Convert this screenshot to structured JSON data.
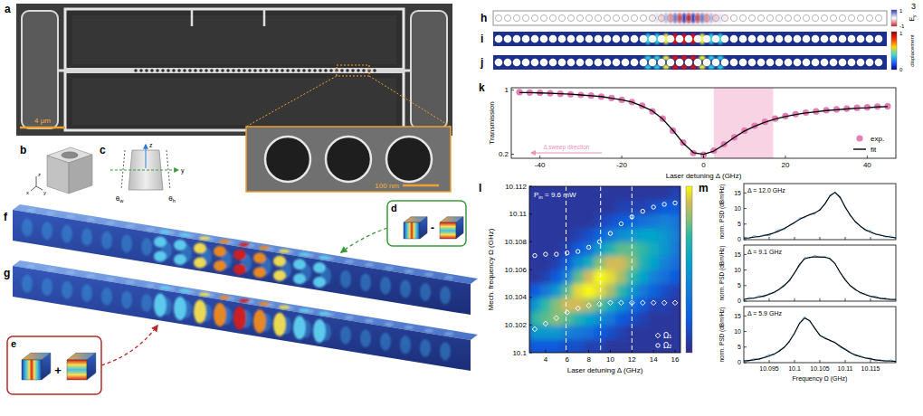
{
  "page_number": "3",
  "sem": {
    "letter": "a",
    "scale_bar": "4 μm",
    "inset_scale_bar": "100 nm"
  },
  "unit_cell": {
    "letter": "b",
    "axes": [
      "x",
      "y",
      "z"
    ]
  },
  "cross_section": {
    "letter": "c",
    "axes": [
      "z",
      "y"
    ],
    "angles": [
      {
        "text": "θ",
        "sub": "w"
      },
      {
        "text": "θ",
        "sub": "h"
      }
    ]
  },
  "mode_d": {
    "letter": "d",
    "operator": "-"
  },
  "mode_e": {
    "letter": "e",
    "operator": "+"
  },
  "mode_profiles": {
    "letters": [
      "f",
      "g"
    ]
  },
  "field_profile": {
    "letter": "h",
    "colorbar": {
      "label": {
        "text": "E",
        "sub": "y"
      },
      "range": [
        -1,
        1
      ],
      "ticks": [
        -1,
        1
      ]
    }
  },
  "displacement_profiles": {
    "letters": [
      "i",
      "j"
    ],
    "colorbar": {
      "label": "displacement",
      "range": [
        0,
        1
      ],
      "ticks": [
        0,
        1
      ]
    }
  },
  "chart_data": [
    {
      "type": "line",
      "letter": "k",
      "x_label": "Laser detuning Δ (GHz)",
      "y_label": "Transmission",
      "x": [
        -45,
        -42.5,
        -40,
        -37.5,
        -35,
        -32.5,
        -30,
        -27.5,
        -25,
        -22.5,
        -20,
        -17.5,
        -15,
        -12.5,
        -10,
        -7.5,
        -5,
        -2.5,
        0,
        2.5,
        5,
        7.5,
        10,
        12.5,
        15,
        17.5,
        20,
        22.5,
        25,
        27.5,
        30,
        32.5,
        35,
        37.5,
        40,
        42.5,
        45
      ],
      "xlim": [
        -47,
        47
      ],
      "ylim": [
        0.15,
        1.03
      ],
      "xticks": [
        -40,
        -20,
        0,
        20,
        40
      ],
      "yticks": [
        0.2,
        1
      ],
      "legend": "lower right",
      "highlight_range": [
        2.5,
        17
      ],
      "annotation": {
        "text": "Δ sweep direction",
        "color": "#e98fba"
      },
      "series": [
        {
          "name": "exp.",
          "type": "scatter",
          "marker": "circle",
          "color": "#e37fb6",
          "values": [
            0.975,
            0.97,
            0.968,
            0.962,
            0.955,
            0.948,
            0.94,
            0.932,
            0.918,
            0.902,
            0.878,
            0.852,
            0.805,
            0.735,
            0.645,
            0.495,
            0.345,
            0.215,
            0.195,
            0.245,
            0.325,
            0.41,
            0.495,
            0.555,
            0.605,
            0.645,
            0.675,
            0.7,
            0.72,
            0.735,
            0.75,
            0.76,
            0.77,
            0.78,
            0.785,
            0.795,
            0.8
          ]
        },
        {
          "name": "fit",
          "type": "line",
          "color": "#000000",
          "values": [
            0.97,
            0.97,
            0.965,
            0.96,
            0.955,
            0.95,
            0.94,
            0.93,
            0.92,
            0.9,
            0.88,
            0.85,
            0.8,
            0.74,
            0.64,
            0.5,
            0.34,
            0.22,
            0.2,
            0.24,
            0.32,
            0.41,
            0.49,
            0.55,
            0.6,
            0.64,
            0.67,
            0.695,
            0.715,
            0.73,
            0.745,
            0.755,
            0.765,
            0.775,
            0.78,
            0.79,
            0.795
          ]
        }
      ]
    },
    {
      "type": "heatmap",
      "letter": "l",
      "x_label": "Laser detuning Δ (GHz)",
      "y_label": "Mech. frequency Ω (GHz)",
      "annotation": {
        "text": "P",
        "sub": "in",
        "rest": " = 9.6 mW"
      },
      "xlim": [
        2.5,
        16.5
      ],
      "ylim": [
        10.1,
        10.112
      ],
      "xticks": [
        4,
        6,
        8,
        10,
        12,
        14,
        16
      ],
      "yticks": [
        10.1,
        10.102,
        10.104,
        10.106,
        10.108,
        10.11,
        10.112
      ],
      "cells": {
        "x": [
          3,
          4,
          5,
          6,
          7,
          8,
          9,
          10,
          11,
          12,
          13,
          14,
          15,
          16
        ],
        "y": [
          10.1005,
          10.1015,
          10.1025,
          10.1035,
          10.1045,
          10.1055,
          10.1065,
          10.1075,
          10.1085,
          10.1095,
          10.1105,
          10.1115
        ],
        "values": [
          [
            0.2,
            0.2,
            0.2,
            0.15,
            0.15,
            0.1,
            0.1,
            0.05,
            0.05,
            0.05,
            0.05,
            0.05,
            0.05,
            0.05
          ],
          [
            0.5,
            0.5,
            0.5,
            0.4,
            0.35,
            0.3,
            0.2,
            0.15,
            0.1,
            0.05,
            0.05,
            0.05,
            0.05,
            0.05
          ],
          [
            0.7,
            0.75,
            0.8,
            0.75,
            0.65,
            0.55,
            0.45,
            0.35,
            0.2,
            0.15,
            0.1,
            0.05,
            0.05,
            0.05
          ],
          [
            0.5,
            0.7,
            0.8,
            0.9,
            0.9,
            0.85,
            0.75,
            0.6,
            0.45,
            0.3,
            0.2,
            0.1,
            0.1,
            0.05
          ],
          [
            0.2,
            0.35,
            0.5,
            0.75,
            0.95,
            1,
            0.95,
            0.85,
            0.7,
            0.5,
            0.35,
            0.25,
            0.15,
            0.1
          ],
          [
            0.05,
            0.1,
            0.2,
            0.4,
            0.75,
            0.9,
            1,
            0.95,
            0.85,
            0.7,
            0.55,
            0.4,
            0.3,
            0.2
          ],
          [
            0.05,
            0.05,
            0.1,
            0.2,
            0.45,
            0.6,
            0.8,
            0.9,
            0.9,
            0.8,
            0.65,
            0.55,
            0.4,
            0.3
          ],
          [
            0.05,
            0.05,
            0.05,
            0.1,
            0.2,
            0.3,
            0.5,
            0.65,
            0.75,
            0.75,
            0.7,
            0.6,
            0.5,
            0.38
          ],
          [
            0.05,
            0.05,
            0.05,
            0.05,
            0.1,
            0.15,
            0.25,
            0.35,
            0.45,
            0.5,
            0.55,
            0.55,
            0.5,
            0.4
          ],
          [
            0.05,
            0.05,
            0.05,
            0.05,
            0.05,
            0.05,
            0.1,
            0.15,
            0.2,
            0.25,
            0.3,
            0.35,
            0.4,
            0.35
          ],
          [
            0.05,
            0.05,
            0.05,
            0.05,
            0.05,
            0.05,
            0.05,
            0.05,
            0.1,
            0.1,
            0.1,
            0.15,
            0.2,
            0.2
          ],
          [
            0.05,
            0.05,
            0.05,
            0.05,
            0.05,
            0.05,
            0.05,
            0.05,
            0.05,
            0.05,
            0.05,
            0.05,
            0.05,
            0.1
          ]
        ]
      },
      "colorbar": {
        "range": [
          0,
          1
        ]
      },
      "dashed_lines": [
        5.9,
        9.1,
        12.0
      ],
      "legend": "lower right",
      "x": [
        3,
        4,
        5,
        6,
        7,
        8,
        9,
        10,
        11,
        12,
        13,
        14,
        15,
        16
      ],
      "series": [
        {
          "name": "Ω₁",
          "type": "scatter",
          "marker": "diamond",
          "color": "#ffffff",
          "values": [
            10.1017,
            10.1021,
            10.1025,
            10.1029,
            10.1032,
            10.1034,
            10.1035,
            10.1036,
            10.1036,
            10.1036,
            10.1036,
            10.1036,
            10.1036,
            10.1036
          ]
        },
        {
          "name": "Ω₂",
          "type": "scatter",
          "marker": "circle",
          "color": "#ffffff",
          "values": [
            10.107,
            10.1071,
            10.1071,
            10.1072,
            10.1073,
            10.1076,
            10.108,
            10.1086,
            10.1093,
            10.1098,
            10.1102,
            10.1105,
            10.1107,
            10.1108
          ]
        }
      ]
    },
    {
      "type": "line",
      "letter": "m",
      "label": "Δ = 12.0 GHz",
      "y_label": "norm. PSD (dBm/Hz)",
      "tick_labels": "y",
      "xlim": [
        10.09,
        10.12
      ],
      "ylim": [
        0,
        18
      ],
      "xticks": [
        10.095,
        10.1,
        10.105,
        10.11,
        10.115
      ],
      "yticks": [
        0,
        5,
        10,
        15
      ],
      "x": [
        10.09,
        10.091,
        10.092,
        10.093,
        10.094,
        10.095,
        10.096,
        10.097,
        10.098,
        10.099,
        10.1,
        10.101,
        10.102,
        10.103,
        10.104,
        10.105,
        10.106,
        10.107,
        10.108,
        10.109,
        10.11,
        10.111,
        10.112,
        10.113,
        10.114,
        10.115,
        10.116,
        10.117,
        10.118,
        10.119,
        10.12
      ],
      "series": [
        {
          "color": "#4f9fdf",
          "values": [
            0.9,
            0.3,
            1.3,
            0.8,
            1.6,
            1.2,
            2.4,
            3.2,
            3.2,
            4.8,
            5.3,
            7.0,
            7.0,
            8.2,
            8.2,
            9.8,
            11.2,
            14.4,
            15.0,
            14.0,
            10.1,
            8.1,
            5.5,
            4.5,
            2.8,
            2.9,
            1.6,
            1.7,
            0.8,
            1.2,
            0.4
          ]
        },
        {
          "color": "#000000",
          "values": [
            0.5,
            0.6,
            0.8,
            1.0,
            1.3,
            1.7,
            2.2,
            2.8,
            3.6,
            4.5,
            5.5,
            6.5,
            7.3,
            8.0,
            8.6,
            9.5,
            11.5,
            14.0,
            15.2,
            13.5,
            10.5,
            7.8,
            5.8,
            4.3,
            3.2,
            2.4,
            1.8,
            1.4,
            1.1,
            0.8,
            0.6
          ]
        }
      ]
    },
    {
      "type": "line",
      "label": "Δ = 9.1 GHz",
      "y_label": "norm. PSD (dBm/Hz)",
      "tick_labels": "y",
      "xlim": [
        10.09,
        10.12
      ],
      "ylim": [
        0,
        18
      ],
      "xticks": [
        10.095,
        10.1,
        10.105,
        10.11,
        10.115
      ],
      "yticks": [
        0,
        5,
        10,
        15
      ],
      "x": [
        10.09,
        10.091,
        10.092,
        10.093,
        10.094,
        10.095,
        10.096,
        10.097,
        10.098,
        10.099,
        10.1,
        10.101,
        10.102,
        10.103,
        10.104,
        10.105,
        10.106,
        10.107,
        10.108,
        10.109,
        10.11,
        10.111,
        10.112,
        10.113,
        10.114,
        10.115,
        10.116,
        10.117,
        10.118,
        10.119,
        10.12
      ],
      "series": [
        {
          "color": "#4f9fdf",
          "values": [
            0.3,
            1.2,
            0.8,
            1.8,
            1.3,
            2.5,
            2.6,
            4.0,
            5.4,
            6.3,
            9.3,
            11.3,
            14.0,
            13.8,
            14.7,
            14.0,
            14.4,
            13.3,
            12.2,
            9.0,
            7.2,
            4.8,
            4.0,
            2.4,
            2.3,
            1.3,
            1.6,
            0.7,
            1.0,
            0.3,
            0.7
          ]
        },
        {
          "color": "#000000",
          "values": [
            0.6,
            0.8,
            1.0,
            1.3,
            1.7,
            2.2,
            2.9,
            3.8,
            5.0,
            6.7,
            9.0,
            11.8,
            13.6,
            14.1,
            14.2,
            14.2,
            14.1,
            13.7,
            12.0,
            9.3,
            6.8,
            5.0,
            3.7,
            2.8,
            2.1,
            1.6,
            1.2,
            0.9,
            0.7,
            0.6,
            0.5
          ]
        }
      ]
    },
    {
      "type": "line",
      "label": "Δ = 5.9 GHz",
      "x_label": "Frequency Ω (GHz)",
      "y_label": "norm. PSD (dBm/Hz)",
      "xlim": [
        10.09,
        10.12
      ],
      "ylim": [
        0,
        18
      ],
      "xticks": [
        10.095,
        10.1,
        10.105,
        10.11,
        10.115
      ],
      "yticks": [
        0,
        5,
        10,
        15
      ],
      "x": [
        10.09,
        10.091,
        10.092,
        10.093,
        10.094,
        10.095,
        10.096,
        10.097,
        10.098,
        10.099,
        10.1,
        10.101,
        10.102,
        10.103,
        10.104,
        10.105,
        10.106,
        10.107,
        10.108,
        10.109,
        10.11,
        10.111,
        10.112,
        10.113,
        10.114,
        10.115,
        10.116,
        10.117,
        10.118,
        10.119,
        10.12
      ],
      "series": [
        {
          "color": "#4f9fdf",
          "values": [
            0.8,
            0.5,
            1.3,
            0.9,
            1.8,
            2.6,
            2.4,
            4.0,
            4.8,
            7.2,
            9.2,
            12.8,
            14.8,
            13.1,
            11.3,
            8.6,
            8.2,
            6.9,
            6.6,
            4.9,
            4.5,
            3.4,
            2.2,
            2.3,
            1.3,
            1.5,
            0.5,
            0.9,
            0.3,
            0.9,
            0.2
          ]
        },
        {
          "color": "#000000",
          "values": [
            0.5,
            0.7,
            0.9,
            1.2,
            1.6,
            2.1,
            2.8,
            3.7,
            5.0,
            6.8,
            9.5,
            12.6,
            14.3,
            13.5,
            11.0,
            8.8,
            7.8,
            7.2,
            6.4,
            5.3,
            4.2,
            3.2,
            2.5,
            1.9,
            1.5,
            1.2,
            0.9,
            0.7,
            0.6,
            0.5,
            0.4
          ]
        }
      ]
    }
  ]
}
